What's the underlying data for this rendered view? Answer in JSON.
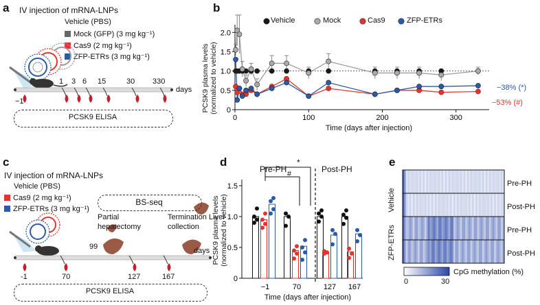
{
  "colors": {
    "vehicle": "#1a1a1a",
    "mock": "#9a9a9a",
    "cas9": "#e2342d",
    "zfp": "#2a5aa8"
  },
  "panel_a": {
    "label": "a",
    "title": "IV injection of mRNA-LNPs",
    "legend": [
      "Vehicle (PBS)",
      "Mock (GFP) (3 mg kg⁻¹)",
      "Cas9 (2 mg kg⁻¹)",
      "ZFP-ETRs (3 mg kg⁻¹)"
    ],
    "timepoints": [
      "1",
      "3",
      "6",
      "15",
      "30",
      "330"
    ],
    "start": "−1",
    "days": "days",
    "assay": "PCSK9 ELISA"
  },
  "panel_b": {
    "label": "b"
  },
  "panel_c": {
    "label": "c",
    "title": "IV injection of mRNA-LNPs",
    "legend": [
      "Vehicle (PBS)",
      "Cas9 (2 mg kg⁻¹)",
      "ZFP-ETRs (3 mg kg⁻¹)"
    ],
    "bsseq": "BS-seq",
    "ph": "Partial hepatectomy",
    "term": "Termination Liver collection",
    "ph_day": "99",
    "timepoints": [
      "-1",
      "70",
      "127",
      "167"
    ],
    "days": "days",
    "assay": "PCSK9 ELISA"
  },
  "panel_d": {
    "label": "d",
    "pre": "Pre-PH",
    "post": "Post-PH",
    "star": "*",
    "hash": "#"
  },
  "panel_e": {
    "label": "e",
    "groups": [
      "Vehicle",
      "ZFP-ETRs"
    ],
    "rows": [
      "Pre-PH",
      "Post-PH",
      "Pre-PH",
      "Post-PH"
    ],
    "legend_label": "CpG methylation (%)",
    "legend_min": "0",
    "legend_max": "30"
  },
  "chart_data": [
    {
      "type": "line",
      "title": "",
      "xlabel": "Time (days after injection)",
      "ylabel": "PCSK9 plasma levels (normalized to vehicle)",
      "xlim": [
        0,
        345
      ],
      "ylim": [
        0,
        2.2
      ],
      "xticks": [
        "0",
        "100",
        "200",
        "300"
      ],
      "yticks": [
        "0",
        "0.5",
        "1.0",
        "1.5",
        "2.0"
      ],
      "legend": [
        "Vehicle",
        "Mock",
        "Cas9",
        "ZFP-ETRs"
      ],
      "annotations": [
        "−38% (*)",
        "−53% (#)"
      ],
      "x": [
        1,
        3,
        6,
        10,
        15,
        22,
        30,
        50,
        70,
        100,
        127,
        190,
        220,
        250,
        280,
        330
      ],
      "series": [
        {
          "name": "Vehicle",
          "values": [
            1,
            1,
            1,
            1,
            1,
            1,
            1,
            1,
            1,
            1,
            1,
            1,
            1,
            1,
            1,
            1
          ]
        },
        {
          "name": "Mock",
          "values": [
            1.55,
            2.05,
            1.95,
            1.05,
            0.75,
            1.05,
            0.65,
            1.2,
            1.2,
            0.95,
            1.25,
            0.95,
            0.95,
            0.95,
            0.9,
            1.0
          ]
        },
        {
          "name": "Cas9",
          "values": [
            0.6,
            0.45,
            0.55,
            0.4,
            0.4,
            0.5,
            0.4,
            0.6,
            0.8,
            0.35,
            0.55,
            0.4,
            0.5,
            0.5,
            0.45,
            0.47
          ]
        },
        {
          "name": "ZFP-ETRs",
          "values": [
            1.3,
            0.25,
            0.55,
            0.35,
            0.5,
            0.55,
            0.4,
            0.55,
            0.7,
            0.35,
            0.7,
            0.4,
            0.5,
            0.6,
            0.6,
            0.62
          ]
        }
      ],
      "errors": [
        0.15,
        0.4,
        0.5,
        0.2,
        0.15,
        0.15,
        0.15,
        0.2,
        0.2,
        0.15,
        0.2,
        0.15,
        0.15,
        0.15,
        0.15,
        0.1
      ]
    },
    {
      "type": "bar",
      "xlabel": "Time (days after injection)",
      "ylabel": "PCSK9 plasma levels (normalized to vehicle)",
      "ylim": [
        0,
        1.6
      ],
      "yticks": [
        "0",
        "0.5",
        "1.0",
        "1.5"
      ],
      "categories": [
        "−1",
        "70",
        "127",
        "167"
      ],
      "series": [
        {
          "name": "Vehicle",
          "values": [
            1.0,
            1.0,
            null,
            null
          ],
          "points": [
            [
              0.9,
              0.95,
              1.0,
              1.13
            ],
            [
              0.85,
              1.0,
              1.05,
              null
            ]
          ]
        },
        {
          "name": "Cas9",
          "values": [
            0.95,
            0.45,
            0.42,
            0.43
          ],
          "points": [
            [
              0.82,
              0.88,
              0.95,
              1.05
            ],
            [
              0.32,
              0.4,
              0.45,
              0.52
            ],
            [
              0.4,
              0.42,
              0.44,
              null
            ],
            [
              0.33,
              0.4,
              0.48,
              null
            ]
          ]
        },
        {
          "name": "ZFP-ETRs",
          "values": [
            1.2,
            0.52,
            0.7,
            0.72
          ],
          "points": [
            [
              1.05,
              1.12,
              1.25,
              1.3
            ],
            [
              0.3,
              0.42,
              0.5,
              0.62
            ],
            [
              0.55,
              0.72,
              0.78,
              null
            ],
            [
              0.6,
              0.7,
              0.78,
              null
            ]
          ]
        }
      ],
      "post_vehicle": [
        1.0,
        1.0
      ],
      "post_vehicle_points": [
        [
          0.92,
          1.0,
          1.05,
          1.1
        ],
        [
          0.88,
          0.98,
          1.03,
          1.1
        ]
      ]
    },
    {
      "type": "heatmap",
      "rows": [
        "Vehicle Pre-PH",
        "Vehicle Post-PH",
        "ZFP-ETRs Pre-PH",
        "ZFP-ETRs Post-PH"
      ],
      "range": [
        0,
        30
      ]
    }
  ]
}
